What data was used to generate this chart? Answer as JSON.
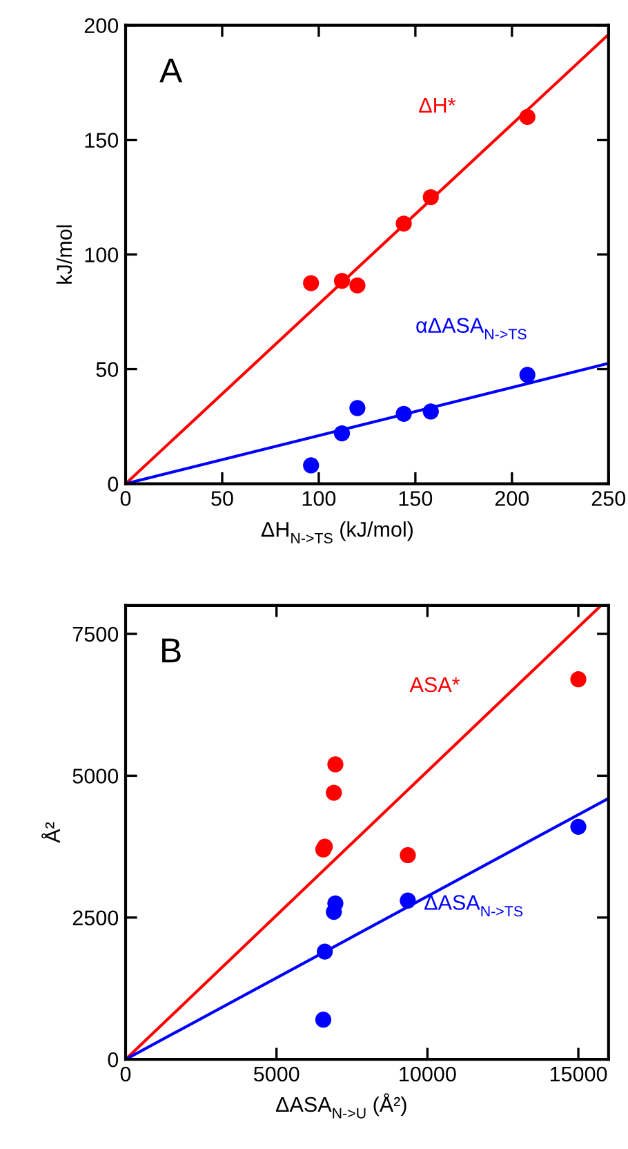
{
  "chart_data": [
    {
      "type": "scatter",
      "xlabel": "ΔH$_{N->TS}$ (kJ/mol)",
      "ylabel": "kJ/mol",
      "xlim": [
        0,
        250
      ],
      "ylim": [
        0,
        200
      ],
      "xticks": [
        0,
        50,
        100,
        150,
        200,
        250
      ],
      "yticks": [
        0,
        50,
        100,
        150,
        200
      ],
      "grid": false,
      "legend": false,
      "marker": "circle",
      "annotations": [
        "A",
        "ΔH*",
        "αΔASA$_{N->TS}$"
      ],
      "series": [
        {
          "color": "#ff0000",
          "x": [
            96,
            112,
            120,
            144,
            158,
            208
          ],
          "values": [
            87.5,
            88.5,
            86.5,
            113.5,
            125,
            160
          ]
        },
        {
          "type": "line",
          "color": "#ff0000",
          "marker": "none",
          "x": [
            0,
            250
          ],
          "values": [
            0,
            196
          ]
        },
        {
          "color": "#0000ff",
          "x": [
            96,
            112,
            120,
            144,
            158,
            208
          ],
          "values": [
            8,
            22,
            33,
            30.5,
            31.5,
            47.5
          ]
        },
        {
          "type": "line",
          "color": "#0000ff",
          "marker": "none",
          "x": [
            0,
            250
          ],
          "values": [
            0,
            52.5
          ]
        }
      ]
    },
    {
      "type": "scatter",
      "xlabel": "ΔASA$_{N->U}$ (Å²)",
      "ylabel": "Å²",
      "xlim": [
        0,
        16000
      ],
      "ylim": [
        0,
        8000
      ],
      "xticks": [
        0,
        5000,
        10000,
        15000
      ],
      "yticks": [
        0,
        2500,
        5000,
        7500
      ],
      "grid": false,
      "legend": false,
      "marker": "circle",
      "annotations": [
        "B",
        "ASA*",
        "ΔASA$_{N->TS}$"
      ],
      "series": [
        {
          "color": "#ff0000",
          "x": [
            6550,
            6600,
            6900,
            6950,
            9350,
            15000
          ],
          "values": [
            3700,
            3750,
            4700,
            5200,
            3600,
            6700
          ]
        },
        {
          "type": "line",
          "color": "#ff0000",
          "marker": "none",
          "x": [
            0,
            15750
          ],
          "values": [
            0,
            8000
          ]
        },
        {
          "color": "#0000ff",
          "x": [
            6550,
            6600,
            6900,
            6950,
            9350,
            15000
          ],
          "values": [
            700,
            1900,
            2600,
            2750,
            2800,
            4100
          ]
        },
        {
          "type": "line",
          "color": "#0000ff",
          "marker": "none",
          "x": [
            0,
            16000
          ],
          "values": [
            0,
            4600
          ]
        }
      ]
    }
  ]
}
